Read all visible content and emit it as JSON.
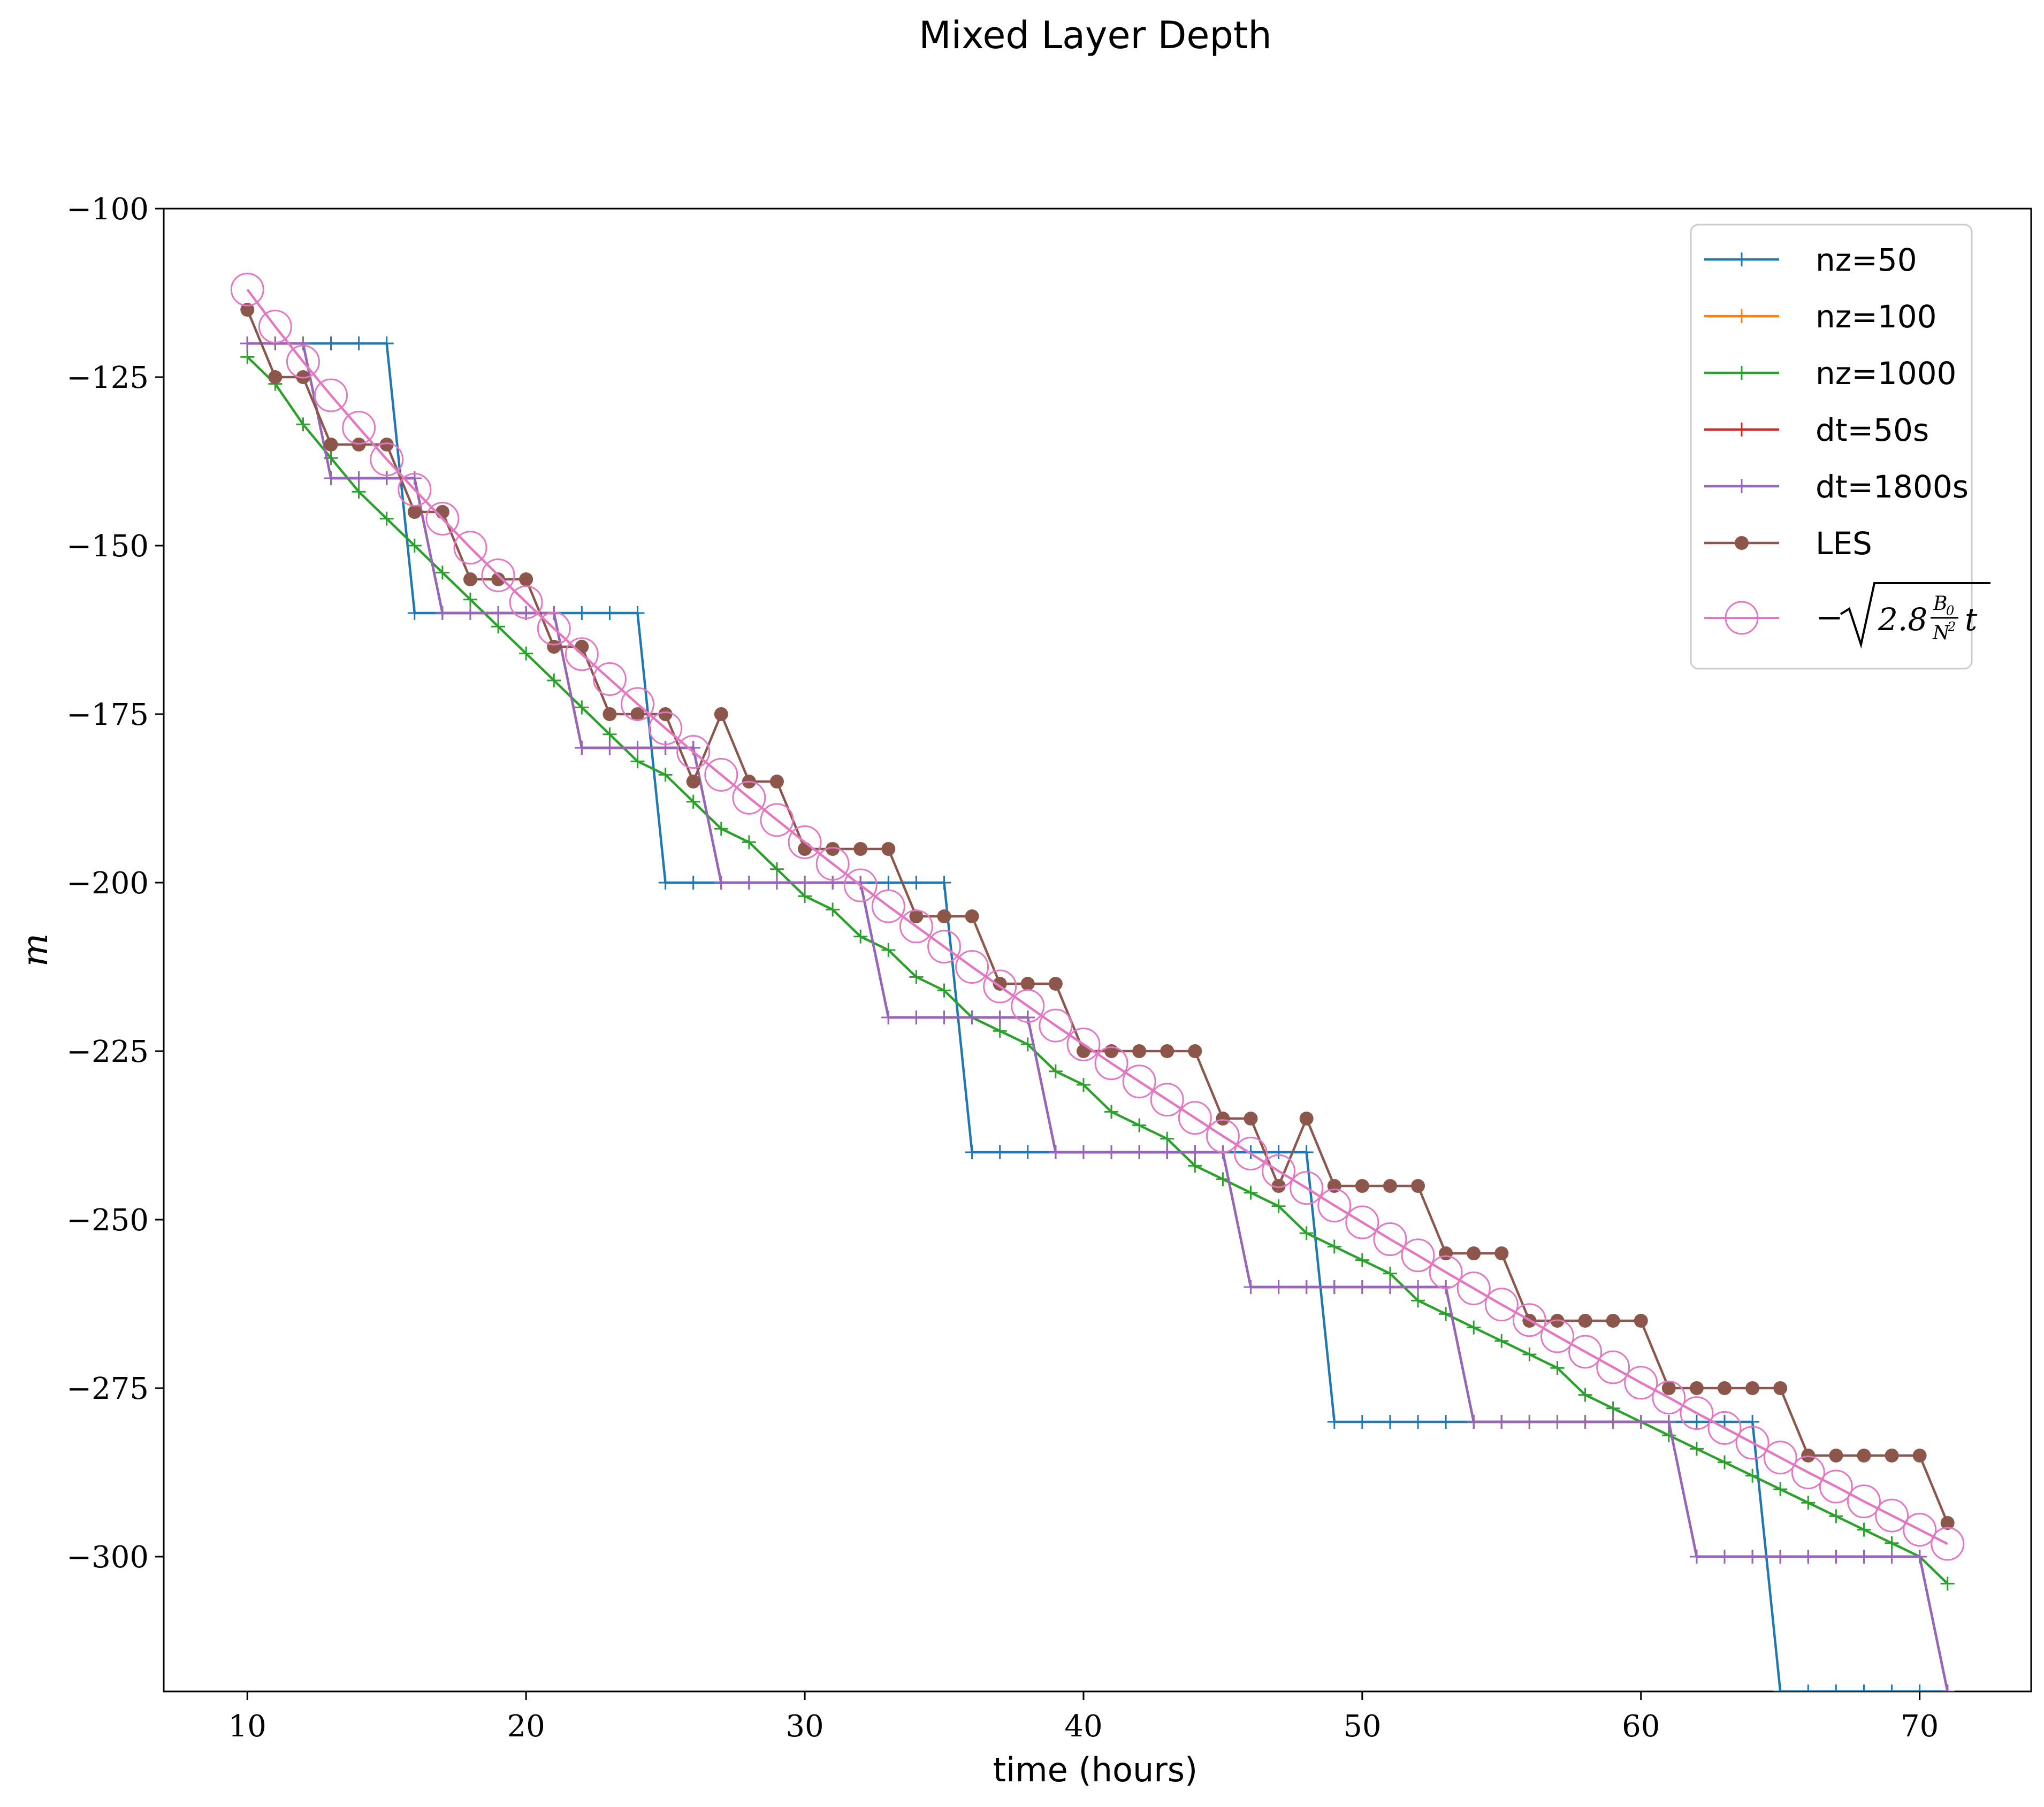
{
  "chart_data": {
    "type": "line",
    "title": "Mixed Layer Depth",
    "xlabel": "time (hours)",
    "ylabel": "m",
    "xlim": [
      7,
      74
    ],
    "ylim": [
      -320,
      -100
    ],
    "xticks": [
      10,
      20,
      30,
      40,
      50,
      60,
      70
    ],
    "yticks": [
      -100,
      -125,
      -150,
      -175,
      -200,
      -225,
      -250,
      -275,
      -300
    ],
    "grid": false,
    "legend_position": "top-right",
    "x": [
      10,
      11,
      12,
      13,
      14,
      15,
      16,
      17,
      18,
      19,
      20,
      21,
      22,
      23,
      24,
      25,
      26,
      27,
      28,
      29,
      30,
      31,
      32,
      33,
      34,
      35,
      36,
      37,
      38,
      39,
      40,
      41,
      42,
      43,
      44,
      45,
      46,
      47,
      48,
      49,
      50,
      51,
      52,
      53,
      54,
      55,
      56,
      57,
      58,
      59,
      60,
      61,
      62,
      63,
      64,
      65,
      66,
      67,
      68,
      69,
      70,
      71
    ],
    "series": [
      {
        "name": "nz=50",
        "color": "#1f77b4",
        "marker": "plus",
        "values": [
          -120,
          -120,
          -120,
          -120,
          -120,
          -120,
          -160,
          -160,
          -160,
          -160,
          -160,
          -160,
          -160,
          -160,
          -160,
          -200,
          -200,
          -200,
          -200,
          -200,
          -200,
          -200,
          -200,
          -200,
          -200,
          -200,
          -240,
          -240,
          -240,
          -240,
          -240,
          -240,
          -240,
          -240,
          -240,
          -240,
          -240,
          -240,
          -240,
          -280,
          -280,
          -280,
          -280,
          -280,
          -280,
          -280,
          -280,
          -280,
          -280,
          -280,
          -280,
          -280,
          -280,
          -280,
          -280,
          -320,
          -320,
          -320,
          -320,
          -320,
          -320,
          -320
        ]
      },
      {
        "name": "nz=100",
        "color": "#ff7f0e",
        "marker": "plus",
        "values": [
          -120,
          -120,
          -120,
          -140,
          -140,
          -140,
          -140,
          -160,
          -160,
          -160,
          -160,
          -160,
          -180,
          -180,
          -180,
          -180,
          -180,
          -200,
          -200,
          -200,
          -200,
          -200,
          -200,
          -220,
          -220,
          -220,
          -220,
          -220,
          -220,
          -240,
          -240,
          -240,
          -240,
          -240,
          -240,
          -240,
          -260,
          -260,
          -260,
          -260,
          -260,
          -260,
          -260,
          -260,
          -280,
          -280,
          -280,
          -280,
          -280,
          -280,
          -280,
          -280,
          -300,
          -300,
          -300,
          -300,
          -300,
          -300,
          -300,
          -300,
          -300,
          -320
        ]
      },
      {
        "name": "nz=1000",
        "color": "#2ca02c",
        "marker": "plus",
        "values": [
          -122,
          -126,
          -132,
          -137,
          -142,
          -146,
          -150,
          -154,
          -158,
          -162,
          -166,
          -170,
          -174,
          -178,
          -182,
          -184,
          -188,
          -192,
          -194,
          -198,
          -202,
          -204,
          -208,
          -210,
          -214,
          -216,
          -220,
          -222,
          -224,
          -228,
          -230,
          -234,
          -236,
          -238,
          -242,
          -244,
          -246,
          -248,
          -252,
          -254,
          -256,
          -258,
          -262,
          -264,
          -266,
          -268,
          -270,
          -272,
          -276,
          -278,
          -280,
          -282,
          -284,
          -286,
          -288,
          -290,
          -292,
          -294,
          -296,
          -298,
          -300,
          -304
        ]
      },
      {
        "name": "dt=50s",
        "color": "#d62728",
        "marker": "plus",
        "values": [
          -120,
          -120,
          -120,
          -140,
          -140,
          -140,
          -140,
          -160,
          -160,
          -160,
          -160,
          -160,
          -180,
          -180,
          -180,
          -180,
          -180,
          -200,
          -200,
          -200,
          -200,
          -200,
          -200,
          -220,
          -220,
          -220,
          -220,
          -220,
          -220,
          -240,
          -240,
          -240,
          -240,
          -240,
          -240,
          -240,
          -260,
          -260,
          -260,
          -260,
          -260,
          -260,
          -260,
          -260,
          -280,
          -280,
          -280,
          -280,
          -280,
          -280,
          -280,
          -280,
          -300,
          -300,
          -300,
          -300,
          -300,
          -300,
          -300,
          -300,
          -300,
          -320
        ]
      },
      {
        "name": "dt=1800s",
        "color": "#9467bd",
        "marker": "plus",
        "values": [
          -120,
          -120,
          -120,
          -140,
          -140,
          -140,
          -140,
          -160,
          -160,
          -160,
          -160,
          -160,
          -180,
          -180,
          -180,
          -180,
          -180,
          -200,
          -200,
          -200,
          -200,
          -200,
          -200,
          -220,
          -220,
          -220,
          -220,
          -220,
          -220,
          -240,
          -240,
          -240,
          -240,
          -240,
          -240,
          -240,
          -260,
          -260,
          -260,
          -260,
          -260,
          -260,
          -260,
          -260,
          -280,
          -280,
          -280,
          -280,
          -280,
          -280,
          -280,
          -280,
          -300,
          -300,
          -300,
          -300,
          -300,
          -300,
          -300,
          -300,
          -300,
          -320
        ]
      },
      {
        "name": "LES",
        "color": "#8c564b",
        "marker": "dot",
        "values": [
          -115,
          -125,
          -125,
          -135,
          -135,
          -135,
          -145,
          -145,
          -155,
          -155,
          -155,
          -165,
          -165,
          -175,
          -175,
          -175,
          -185,
          -175,
          -185,
          -185,
          -195,
          -195,
          -195,
          -195,
          -205,
          -205,
          -205,
          -215,
          -215,
          -215,
          -225,
          -225,
          -225,
          -225,
          -225,
          -235,
          -235,
          -245,
          -235,
          -245,
          -245,
          -245,
          -245,
          -255,
          -255,
          -255,
          -265,
          -265,
          -265,
          -265,
          -265,
          -275,
          -275,
          -275,
          -275,
          -275,
          -285,
          -285,
          -285,
          -285,
          -285,
          -295
        ]
      },
      {
        "name": "-sqrt(2.8 B0/N^2 t)",
        "color": "#e377c2",
        "marker": "circle",
        "values": [
          -112.0,
          -117.5,
          -122.7,
          -127.7,
          -132.5,
          -137.2,
          -141.7,
          -146.0,
          -150.3,
          -154.4,
          -158.4,
          -162.3,
          -166.1,
          -169.8,
          -173.5,
          -177.1,
          -180.6,
          -184.0,
          -187.4,
          -190.7,
          -194.0,
          -197.2,
          -200.4,
          -203.5,
          -206.5,
          -209.5,
          -212.5,
          -215.4,
          -218.3,
          -221.2,
          -224.0,
          -226.8,
          -229.5,
          -232.2,
          -234.9,
          -237.6,
          -240.2,
          -242.8,
          -245.3,
          -247.9,
          -250.4,
          -252.9,
          -255.3,
          -257.8,
          -260.2,
          -262.6,
          -264.9,
          -267.3,
          -269.6,
          -271.9,
          -274.2,
          -276.4,
          -278.7,
          -280.9,
          -283.1,
          -285.3,
          -287.5,
          -289.6,
          -291.8,
          -293.9,
          -296.0,
          -298.1
        ]
      }
    ]
  },
  "legend": {
    "items": [
      "nz=50",
      "nz=100",
      "nz=1000",
      "dt=50s",
      "dt=1800s",
      "LES"
    ],
    "formula": {
      "minus": "−",
      "coef": "2.8",
      "num": "B",
      "num_sub": "0",
      "den": "N",
      "den_sup": "2",
      "var": "t"
    }
  }
}
